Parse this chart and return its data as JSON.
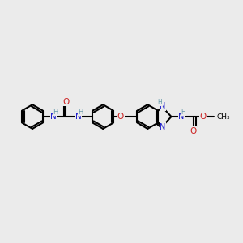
{
  "bg_color": "#ebebeb",
  "bond_color": "#000000",
  "N_color": "#2020cc",
  "O_color": "#cc2020",
  "NH_color": "#6699aa",
  "figsize": [
    3.0,
    3.0
  ],
  "dpi": 100,
  "xlim": [
    0,
    10
  ],
  "ylim": [
    0,
    10
  ]
}
